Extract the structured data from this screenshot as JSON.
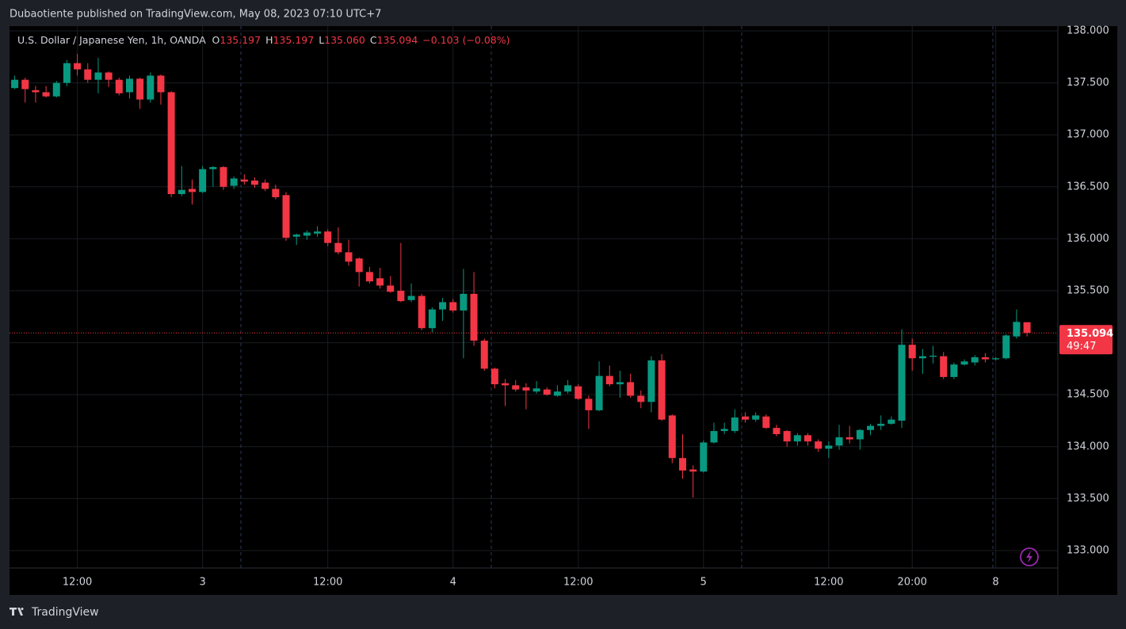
{
  "header": {
    "published": "Dubaotiente published on TradingView.com, May 08, 2023 07:10 UTC+7"
  },
  "footer": {
    "brand": "TradingView"
  },
  "chart_data": {
    "type": "candlestick",
    "title": "U.S. Dollar / Japanese Yen, 1h, OANDA",
    "legend_items": [
      {
        "key": "O",
        "value": 135.197,
        "label": "135.197"
      },
      {
        "key": "H",
        "value": 135.197,
        "label": "135.197"
      },
      {
        "key": "L",
        "value": 135.06,
        "label": "135.060"
      },
      {
        "key": "C",
        "value": 135.094,
        "label": "135.094"
      }
    ],
    "change": {
      "value": -0.103,
      "label": "−0.103"
    },
    "change_pct": {
      "value": -0.08,
      "label": "(−0.08%)"
    },
    "last_price": {
      "value": 135.094,
      "label": "135.094"
    },
    "countdown": "49:47",
    "up_color": "#089981",
    "down_color": "#f23645",
    "categories": [
      null,
      null,
      null,
      null,
      null,
      null,
      "12:00",
      null,
      null,
      null,
      null,
      null,
      null,
      null,
      null,
      null,
      null,
      null,
      "3",
      null,
      null,
      null,
      null,
      null,
      null,
      null,
      null,
      null,
      null,
      null,
      "12:00",
      null,
      null,
      null,
      null,
      null,
      null,
      null,
      null,
      null,
      null,
      null,
      "4",
      null,
      null,
      null,
      null,
      null,
      null,
      null,
      null,
      null,
      null,
      null,
      "12:00",
      null,
      null,
      null,
      null,
      null,
      null,
      null,
      null,
      null,
      null,
      null,
      "5",
      null,
      null,
      null,
      null,
      null,
      null,
      null,
      null,
      null,
      null,
      null,
      "12:00",
      null,
      null,
      null,
      null,
      null,
      null,
      null,
      "20:00",
      null,
      null,
      null,
      null,
      null,
      null,
      null,
      "8",
      null,
      null,
      null
    ],
    "open": [
      137.45,
      137.53,
      137.43,
      137.41,
      137.37,
      137.5,
      137.69,
      137.63,
      137.53,
      137.6,
      137.53,
      137.41,
      137.54,
      137.34,
      137.57,
      137.41,
      136.43,
      136.48,
      136.45,
      136.67,
      136.69,
      136.51,
      136.57,
      136.56,
      136.54,
      136.48,
      136.42,
      136.02,
      136.03,
      136.05,
      136.07,
      135.96,
      135.87,
      135.81,
      135.68,
      135.62,
      135.55,
      135.5,
      135.41,
      135.45,
      135.14,
      135.32,
      135.39,
      135.31,
      135.47,
      135.02,
      134.75,
      134.61,
      134.59,
      134.57,
      134.53,
      134.55,
      134.49,
      134.53,
      134.58,
      134.46,
      134.35,
      134.68,
      134.6,
      134.62,
      134.49,
      134.43,
      134.83,
      134.3,
      133.89,
      133.78,
      133.76,
      134.04,
      134.15,
      134.15,
      134.29,
      134.26,
      134.29,
      134.18,
      134.15,
      134.05,
      134.11,
      134.05,
      133.98,
      134.01,
      134.09,
      134.07,
      134.16,
      134.2,
      134.22,
      134.25,
      134.98,
      134.85,
      134.865,
      134.87,
      134.67,
      134.79,
      134.81,
      134.86,
      134.84,
      134.85,
      135.06,
      135.197
    ],
    "high": [
      137.57,
      137.55,
      137.47,
      137.47,
      137.52,
      137.72,
      137.78,
      137.69,
      137.74,
      137.61,
      137.55,
      137.57,
      137.55,
      137.6,
      137.58,
      137.42,
      136.7,
      136.57,
      136.7,
      136.7,
      136.7,
      136.6,
      136.62,
      136.59,
      136.57,
      136.52,
      136.45,
      136.05,
      136.08,
      136.12,
      136.09,
      136.11,
      135.99,
      135.82,
      135.73,
      135.72,
      135.64,
      135.96,
      135.57,
      135.47,
      135.34,
      135.43,
      135.42,
      135.71,
      135.68,
      135.04,
      134.76,
      134.65,
      134.64,
      134.61,
      134.63,
      134.57,
      134.59,
      134.64,
      134.6,
      134.49,
      134.82,
      134.78,
      134.73,
      134.7,
      134.54,
      134.87,
      134.89,
      134.31,
      134.12,
      133.82,
      134.06,
      134.23,
      134.23,
      134.36,
      134.33,
      134.33,
      134.31,
      134.21,
      134.16,
      134.13,
      134.13,
      134.07,
      134.05,
      134.21,
      134.2,
      134.17,
      134.22,
      134.3,
      134.29,
      135.13,
      135.04,
      134.94,
      134.97,
      134.91,
      134.81,
      134.84,
      134.88,
      134.9,
      134.86,
      135.08,
      135.32,
      135.197
    ],
    "low": [
      137.44,
      137.31,
      137.31,
      137.36,
      137.36,
      137.47,
      137.57,
      137.5,
      137.4,
      137.46,
      137.38,
      137.35,
      137.25,
      137.31,
      137.29,
      136.4,
      136.41,
      136.33,
      136.44,
      136.5,
      136.47,
      136.48,
      136.52,
      136.49,
      136.46,
      136.38,
      135.98,
      135.94,
      135.99,
      136.02,
      135.93,
      135.85,
      135.74,
      135.54,
      135.57,
      135.52,
      135.48,
      135.39,
      135.39,
      135.12,
      135.1,
      135.21,
      135.29,
      134.85,
      134.97,
      134.73,
      134.56,
      134.39,
      134.53,
      134.36,
      134.51,
      134.49,
      134.48,
      134.51,
      134.45,
      134.17,
      134.34,
      134.58,
      134.47,
      134.47,
      134.37,
      134.33,
      134.25,
      133.84,
      133.69,
      133.51,
      133.75,
      134.03,
      134.12,
      134.13,
      134.23,
      134.24,
      134.17,
      134.1,
      134.0,
      134.01,
      134.01,
      133.95,
      133.89,
      133.97,
      134.03,
      133.97,
      134.11,
      134.16,
      134.21,
      134.18,
      134.73,
      134.7,
      134.8,
      134.65,
      134.65,
      134.78,
      134.78,
      134.81,
      134.83,
      134.84,
      135.04,
      135.06
    ],
    "close": [
      137.53,
      137.44,
      137.41,
      137.37,
      137.5,
      137.69,
      137.63,
      137.53,
      137.6,
      137.53,
      137.4,
      137.54,
      137.34,
      137.57,
      137.41,
      136.43,
      136.47,
      136.45,
      136.67,
      136.69,
      136.5,
      136.58,
      136.55,
      136.52,
      136.48,
      136.4,
      136.01,
      136.04,
      136.06,
      136.07,
      135.96,
      135.87,
      135.78,
      135.68,
      135.59,
      135.55,
      135.49,
      135.4,
      135.45,
      135.14,
      135.32,
      135.39,
      135.31,
      135.47,
      135.02,
      134.75,
      134.6,
      134.59,
      134.55,
      134.54,
      134.56,
      134.5,
      134.53,
      134.59,
      134.46,
      134.35,
      134.68,
      134.6,
      134.62,
      134.49,
      134.43,
      134.83,
      134.26,
      133.89,
      133.77,
      133.76,
      134.04,
      134.15,
      134.17,
      134.28,
      134.26,
      134.3,
      134.18,
      134.12,
      134.05,
      134.11,
      134.05,
      133.98,
      134.01,
      134.09,
      134.07,
      134.16,
      134.2,
      134.22,
      134.26,
      134.98,
      134.85,
      134.87,
      134.875,
      134.67,
      134.79,
      134.82,
      134.86,
      134.84,
      134.85,
      135.07,
      135.2,
      135.094
    ],
    "ylim": [
      132.832,
      138.046
    ],
    "yticks": [
      {
        "value": 133,
        "label": "133.000"
      },
      {
        "value": 133.5,
        "label": "133.500"
      },
      {
        "value": 134,
        "label": "134.000"
      },
      {
        "value": 134.5,
        "label": "134.500"
      },
      {
        "value": 135,
        "label": "135.000"
      },
      {
        "value": 135.5,
        "label": "135.500"
      },
      {
        "value": 136,
        "label": "136.000"
      },
      {
        "value": 136.5,
        "label": "136.500"
      },
      {
        "value": 137,
        "label": "137.000"
      },
      {
        "value": 137.5,
        "label": "137.500"
      },
      {
        "value": 138,
        "label": "138.000"
      }
    ],
    "grid": true
  }
}
